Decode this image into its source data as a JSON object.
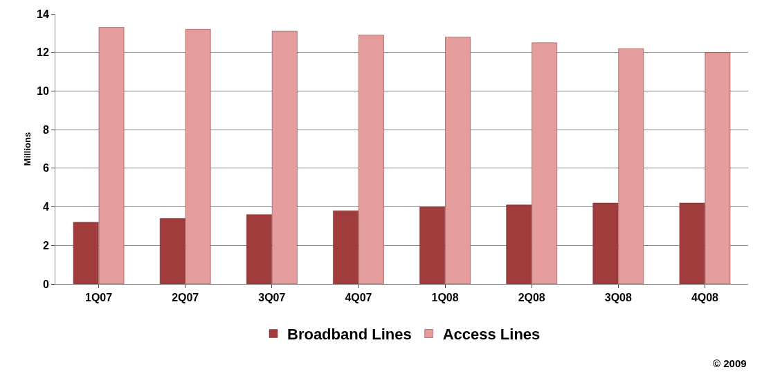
{
  "chart_data": {
    "type": "bar",
    "ylabel": "Millions",
    "categories": [
      "1Q07",
      "2Q07",
      "3Q07",
      "4Q07",
      "1Q08",
      "2Q08",
      "3Q08",
      "4Q08"
    ],
    "series": [
      {
        "name": "Broadband Lines",
        "color": "#a03c3c",
        "values": [
          3.2,
          3.4,
          3.6,
          3.8,
          4.0,
          4.1,
          4.2,
          4.2
        ]
      },
      {
        "name": "Access Lines",
        "color": "#e59c9c",
        "values": [
          13.3,
          13.2,
          13.1,
          12.9,
          12.8,
          12.5,
          12.2,
          12.0
        ]
      }
    ],
    "ylim": [
      0,
      14
    ],
    "yticks": [
      0,
      2,
      4,
      6,
      8,
      10,
      12,
      14
    ],
    "grid": "y",
    "legend": "bottom",
    "annotations": [
      "© 2009"
    ]
  }
}
